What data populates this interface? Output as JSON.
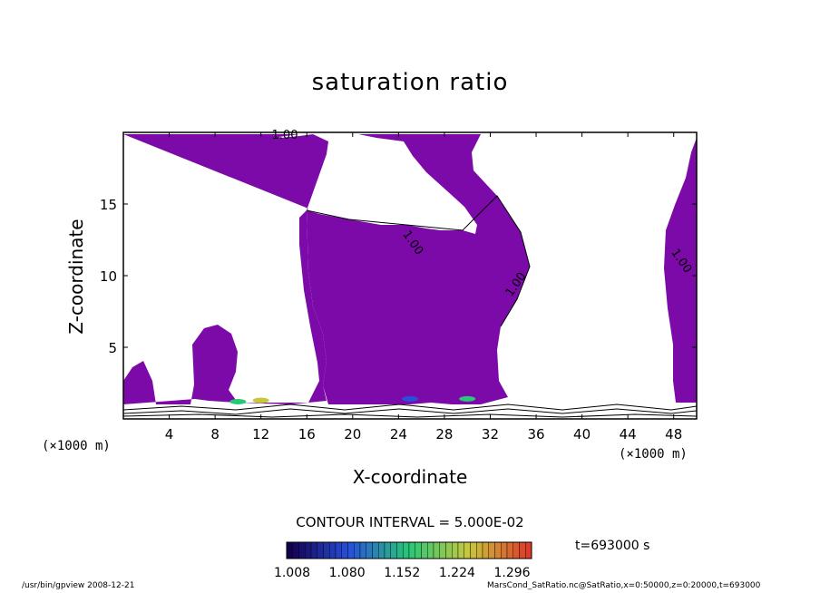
{
  "chart_data": {
    "type": "heatmap",
    "title": "saturation ratio",
    "xlabel": "X-coordinate",
    "ylabel": "Z-coordinate",
    "x_unit_left": "(×1000 m)",
    "x_unit_right": "(×1000 m)",
    "xlim": [
      0,
      50
    ],
    "ylim": [
      0,
      20
    ],
    "x_ticks": [
      4,
      8,
      12,
      16,
      20,
      24,
      28,
      32,
      36,
      40,
      44,
      48
    ],
    "y_ticks": [
      5,
      10,
      15
    ],
    "contour_labels": [
      "1.00",
      "1.00",
      "1.00",
      "1.00"
    ],
    "contour_interval": "CONTOUR INTERVAL = 5.000E-02",
    "colorbar_ticks": [
      "1.008",
      "1.080",
      "1.152",
      "1.224",
      "1.296"
    ],
    "time_label": "t=693000 s",
    "fill_color": "#7b0aa8",
    "regions": [
      {
        "name": "main supersaturated region",
        "min_value": 1.0,
        "x_range": [
          0,
          36
        ],
        "z_range": [
          1,
          20
        ]
      },
      {
        "name": "right edge region",
        "min_value": 1.0,
        "x_range": [
          47,
          50
        ],
        "z_range": [
          1,
          19
        ]
      }
    ],
    "peak_cells": [
      {
        "x": 10,
        "z": 1.2,
        "value": 1.152
      },
      {
        "x": 12,
        "z": 1.3,
        "value": 1.224
      },
      {
        "x": 25,
        "z": 1.4,
        "value": 1.08
      },
      {
        "x": 30,
        "z": 1.4,
        "value": 1.152
      }
    ]
  },
  "footer": {
    "left": "/usr/bin/gpview   2008-12-21",
    "right": "MarsCond_SatRatio.nc@SatRatio,x=0:50000,z=0:20000,t=693000"
  }
}
